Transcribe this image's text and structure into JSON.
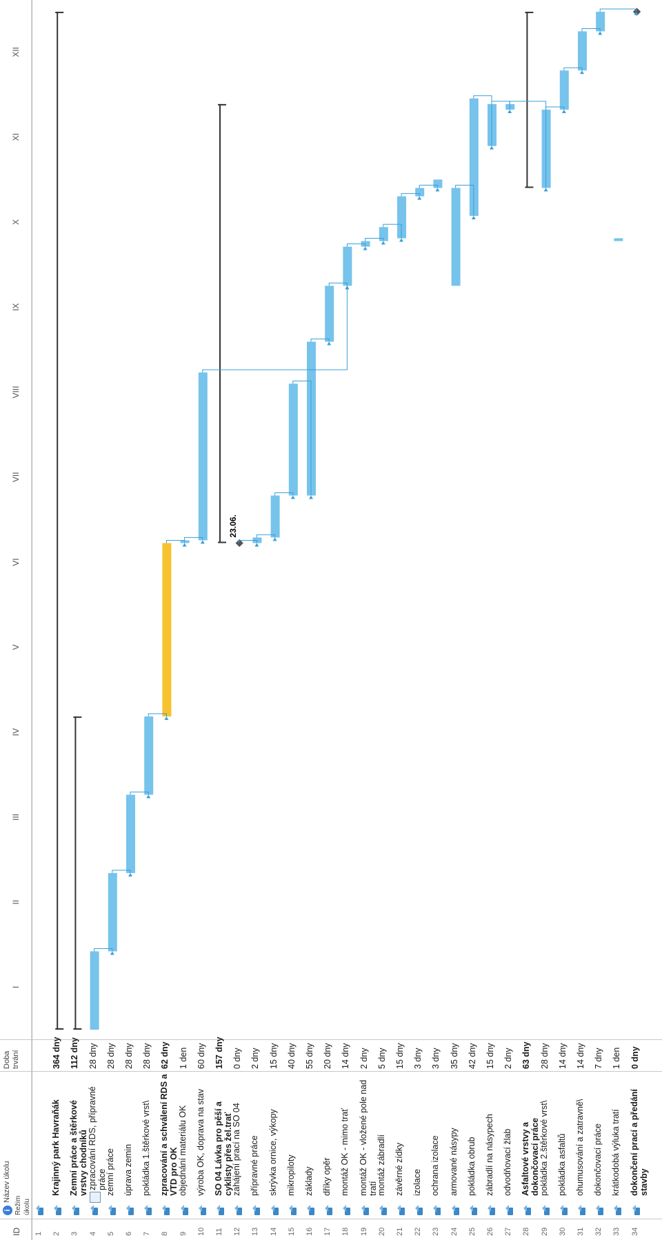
{
  "header": {
    "col_id": "ID",
    "col_mode": "Režim úkolu",
    "col_name": "Název úkolu",
    "col_duration": "Doba trvání",
    "info_icon": "i"
  },
  "timeline": {
    "months": [
      "I",
      "II",
      "III",
      "IV",
      "V",
      "VI",
      "VII",
      "VIII",
      "IX",
      "X",
      "XI",
      "XII"
    ]
  },
  "milestone_label": "23.06.",
  "tasks": [
    {
      "id": "1",
      "name": "",
      "duration": "",
      "bold": false
    },
    {
      "id": "2",
      "name": "Krajinný park Havraňák",
      "duration": "364 dny",
      "bold": true
    },
    {
      "id": "3",
      "name": "Zemní práce a štěrkové vrstvy chodníků",
      "duration": "112 dny",
      "bold": true
    },
    {
      "id": "4",
      "name": "zpracování RDS, přípravné práce",
      "duration": "28 dny",
      "bold": false,
      "calendar": true
    },
    {
      "id": "5",
      "name": "zemní práce",
      "duration": "28 dny",
      "bold": false
    },
    {
      "id": "6",
      "name": "úprava zemin",
      "duration": "28 dny",
      "bold": false
    },
    {
      "id": "7",
      "name": "pokládka 1.štěrkové vrst\\",
      "duration": "28 dny",
      "bold": false
    },
    {
      "id": "8",
      "name": "zpracování a schválení RDS a VTD pro OK",
      "duration": "62 dny",
      "bold": true
    },
    {
      "id": "9",
      "name": "objednání materiálu OK",
      "duration": "1 den",
      "bold": false
    },
    {
      "id": "10",
      "name": "výroba OK, doprava na stav",
      "duration": "60 dny",
      "bold": false
    },
    {
      "id": "11",
      "name": "SO 04 Lávka pro pěší a cyklisty přes žel.trať",
      "duration": "157 dny",
      "bold": true
    },
    {
      "id": "12",
      "name": "zahájení prací na SO 04",
      "duration": "0 dny",
      "bold": false
    },
    {
      "id": "13",
      "name": "přípravné práce",
      "duration": "2 dny",
      "bold": false
    },
    {
      "id": "14",
      "name": "skrývka ornice, výkopy",
      "duration": "15 dny",
      "bold": false
    },
    {
      "id": "15",
      "name": "mikropiloty",
      "duration": "40 dny",
      "bold": false
    },
    {
      "id": "16",
      "name": "základy",
      "duration": "55 dny",
      "bold": false
    },
    {
      "id": "17",
      "name": "dříky opěr",
      "duration": "20 dny",
      "bold": false
    },
    {
      "id": "18",
      "name": "montáž OK - mimo trať",
      "duration": "14 dny",
      "bold": false
    },
    {
      "id": "19",
      "name": "montáž OK - vložené pole nad tratí",
      "duration": "2 dny",
      "bold": false
    },
    {
      "id": "20",
      "name": "montáž zábradlí",
      "duration": "5 dny",
      "bold": false
    },
    {
      "id": "21",
      "name": "závěrné zídky",
      "duration": "15 dny",
      "bold": false
    },
    {
      "id": "22",
      "name": "izolace",
      "duration": "3 dny",
      "bold": false
    },
    {
      "id": "23",
      "name": "ochrana izolace",
      "duration": "3 dny",
      "bold": false
    },
    {
      "id": "24",
      "name": "armované násypy",
      "duration": "35 dny",
      "bold": false
    },
    {
      "id": "25",
      "name": "pokládka obrub",
      "duration": "42 dny",
      "bold": false
    },
    {
      "id": "26",
      "name": "zábradlí na násypech",
      "duration": "15 dny",
      "bold": false
    },
    {
      "id": "27",
      "name": "odvodňovací žlab",
      "duration": "2 dny",
      "bold": false
    },
    {
      "id": "28",
      "name": "Asfaltové vrstvy a dokončovací práce",
      "duration": "63 dny",
      "bold": true
    },
    {
      "id": "29",
      "name": "pokládka 2.štěrkové vrst\\",
      "duration": "28 dny",
      "bold": false
    },
    {
      "id": "30",
      "name": "pokládka asfaltů",
      "duration": "14 dny",
      "bold": false
    },
    {
      "id": "31",
      "name": "ohumusování a zatravně\\",
      "duration": "14 dny",
      "bold": false
    },
    {
      "id": "32",
      "name": "dokončovací práce",
      "duration": "7 dny",
      "bold": false
    },
    {
      "id": "33",
      "name": "krátkodobá výluka tratí",
      "duration": "1 den",
      "bold": false
    },
    {
      "id": "34",
      "name": "dokončení prací a předání stavby",
      "duration": "0 dny",
      "bold": true
    }
  ],
  "gantt": [
    {
      "row": 1,
      "type": "none"
    },
    {
      "row": 2,
      "type": "summary",
      "start": 0,
      "end": 364
    },
    {
      "row": 3,
      "type": "summary",
      "start": 0,
      "end": 112
    },
    {
      "row": 4,
      "type": "task",
      "start": 0,
      "end": 28
    },
    {
      "row": 5,
      "type": "task",
      "start": 28,
      "end": 56
    },
    {
      "row": 6,
      "type": "task",
      "start": 56,
      "end": 84
    },
    {
      "row": 7,
      "type": "task",
      "start": 84,
      "end": 112
    },
    {
      "row": 8,
      "type": "critical",
      "start": 112,
      "end": 174
    },
    {
      "row": 9,
      "type": "task",
      "start": 174,
      "end": 175
    },
    {
      "row": 10,
      "type": "task",
      "start": 175,
      "end": 235
    },
    {
      "row": 11,
      "type": "summary",
      "start": 174,
      "end": 331
    },
    {
      "row": 12,
      "type": "milestone",
      "start": 174,
      "end": 174
    },
    {
      "row": 13,
      "type": "task",
      "start": 174,
      "end": 176
    },
    {
      "row": 14,
      "type": "task",
      "start": 176,
      "end": 191
    },
    {
      "row": 15,
      "type": "task",
      "start": 191,
      "end": 231
    },
    {
      "row": 16,
      "type": "task",
      "start": 191,
      "end": 246
    },
    {
      "row": 17,
      "type": "task",
      "start": 246,
      "end": 266
    },
    {
      "row": 18,
      "type": "task",
      "start": 266,
      "end": 280
    },
    {
      "row": 19,
      "type": "task",
      "start": 280,
      "end": 282
    },
    {
      "row": 20,
      "type": "task",
      "start": 282,
      "end": 287
    },
    {
      "row": 21,
      "type": "task",
      "start": 283,
      "end": 298
    },
    {
      "row": 22,
      "type": "task",
      "start": 298,
      "end": 301
    },
    {
      "row": 23,
      "type": "task",
      "start": 301,
      "end": 304
    },
    {
      "row": 24,
      "type": "task",
      "start": 266,
      "end": 301
    },
    {
      "row": 25,
      "type": "task",
      "start": 291,
      "end": 333
    },
    {
      "row": 26,
      "type": "task",
      "start": 316,
      "end": 331
    },
    {
      "row": 27,
      "type": "task",
      "start": 329,
      "end": 331
    },
    {
      "row": 28,
      "type": "summary",
      "start": 301,
      "end": 364
    },
    {
      "row": 29,
      "type": "task",
      "start": 301,
      "end": 329
    },
    {
      "row": 30,
      "type": "task",
      "start": 329,
      "end": 343
    },
    {
      "row": 31,
      "type": "task",
      "start": 343,
      "end": 357
    },
    {
      "row": 32,
      "type": "task",
      "start": 357,
      "end": 364
    },
    {
      "row": 33,
      "type": "task",
      "start": 282,
      "end": 283
    },
    {
      "row": 34,
      "type": "milestone",
      "start": 364,
      "end": 364
    }
  ]
}
